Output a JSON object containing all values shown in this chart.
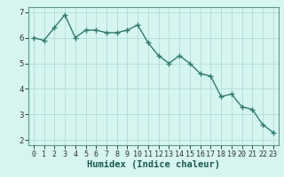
{
  "x": [
    0,
    1,
    2,
    3,
    4,
    5,
    6,
    7,
    8,
    9,
    10,
    11,
    12,
    13,
    14,
    15,
    16,
    17,
    18,
    19,
    20,
    21,
    22,
    23
  ],
  "y": [
    6.0,
    5.9,
    6.4,
    6.9,
    6.0,
    6.3,
    6.3,
    6.2,
    6.2,
    6.3,
    6.5,
    5.8,
    5.3,
    5.0,
    5.3,
    5.0,
    4.6,
    4.5,
    3.7,
    3.8,
    3.3,
    3.2,
    2.6,
    2.3
  ],
  "xlabel": "Humidex (Indice chaleur)",
  "line_color": "#2e7d6e",
  "bg_color": "#d6f5f0",
  "grid_color": "#b0ddd6",
  "xlim": [
    -0.5,
    23.5
  ],
  "ylim": [
    1.8,
    7.2
  ],
  "yticks": [
    2,
    3,
    4,
    5,
    6,
    7
  ],
  "xticks": [
    0,
    1,
    2,
    3,
    4,
    5,
    6,
    7,
    8,
    9,
    10,
    11,
    12,
    13,
    14,
    15,
    16,
    17,
    18,
    19,
    20,
    21,
    22,
    23
  ],
  "marker": "+",
  "markersize": 4,
  "linewidth": 1.0,
  "tick_fontsize": 6.0,
  "xlabel_fontsize": 7.5
}
